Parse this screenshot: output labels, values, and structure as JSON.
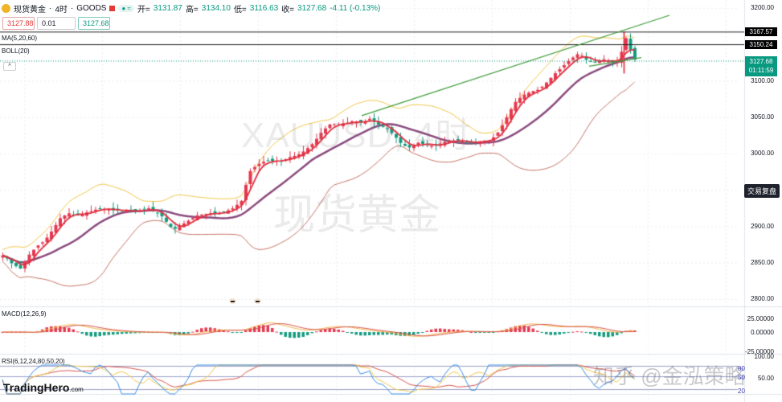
{
  "header": {
    "symbol": "现货黄金",
    "timeframe": "4时",
    "exchange": "GOODS",
    "open_label": "开=",
    "open": "3131.87",
    "high_label": "高=",
    "high": "3134.10",
    "low_label": "低=",
    "low": "3116.63",
    "close_label": "收=",
    "close": "3127.68",
    "change": "-4.11 (-0.13%)",
    "status_pill": "≈"
  },
  "trade_boxes": {
    "sell_price": "3127.88",
    "quantity": "0.01",
    "buy_price": "3127.68"
  },
  "indicators": {
    "ma": "MA(5,20,60)",
    "boll": "BOLL(20)",
    "macd": "MACD(12,26,9)",
    "rsi": "RSI(6,12,24,80,50,20)",
    "collapse_icon": "^"
  },
  "price_axis": {
    "labels": [
      "3200.00",
      "3100.00",
      "3050.00",
      "3000.00",
      "2900.00",
      "2850.00",
      "2800.00"
    ],
    "tag_high": "3167.57",
    "tag_mid": "3150.24",
    "tag_last": "3127.68",
    "tag_countdown": "01:11:59",
    "replay_button": "交易复盘"
  },
  "macd_axis": [
    "25.00000",
    "0.00000",
    "-25.00000"
  ],
  "rsi_axis": {
    "labels": [
      "100.00",
      "50.00"
    ],
    "levels": [
      "80",
      "50",
      "20"
    ]
  },
  "watermarks": {
    "symbol": "XAUUSD, 4时",
    "name": "现货黄金",
    "credit": "知乎 @金泓策略"
  },
  "logo": {
    "brand": "TradingHero",
    "suffix": ".com"
  },
  "colors": {
    "up": "#e53950",
    "down": "#139b7f",
    "ma5": "#e0303f",
    "ma20": "#8b4a7e",
    "boll_upper": "#f2c94c",
    "boll_lower": "#c9776a",
    "trend": "#3f9b3a",
    "rsi6": "#3a8ee6",
    "rsi12": "#f2c94c",
    "rsi24": "#d9564e"
  },
  "chart_data": {
    "type": "candlestick",
    "title": "现货黄金 · 4时 · GOODS",
    "ylim": [
      2800,
      3200
    ],
    "yticks": [
      2800,
      2850,
      2900,
      3000,
      3050,
      3100,
      3200
    ],
    "last": {
      "open": 3131.87,
      "high": 3134.1,
      "low": 3116.63,
      "close": 3127.68
    },
    "horizontal_lines": [
      3167.57,
      3150.24
    ],
    "trendline": {
      "from": [
        450,
        3052
      ],
      "to": [
        833,
        3190
      ]
    },
    "price_path": [
      [
        5,
        2860
      ],
      [
        15,
        2848
      ],
      [
        25,
        2842
      ],
      [
        35,
        2860
      ],
      [
        45,
        2872
      ],
      [
        55,
        2880
      ],
      [
        65,
        2895
      ],
      [
        75,
        2912
      ],
      [
        85,
        2918
      ],
      [
        95,
        2915
      ],
      [
        110,
        2920
      ],
      [
        125,
        2925
      ],
      [
        140,
        2922
      ],
      [
        155,
        2922
      ],
      [
        170,
        2920
      ],
      [
        185,
        2925
      ],
      [
        200,
        2915
      ],
      [
        215,
        2895
      ],
      [
        230,
        2905
      ],
      [
        245,
        2915
      ],
      [
        260,
        2918
      ],
      [
        275,
        2918
      ],
      [
        290,
        2925
      ],
      [
        300,
        2935
      ],
      [
        310,
        2975
      ],
      [
        320,
        2985
      ],
      [
        330,
        2990
      ],
      [
        340,
        2990
      ],
      [
        350,
        2990
      ],
      [
        360,
        2995
      ],
      [
        370,
        2998
      ],
      [
        380,
        3005
      ],
      [
        390,
        3015
      ],
      [
        400,
        3030
      ],
      [
        410,
        3040
      ],
      [
        420,
        3040
      ],
      [
        430,
        3042
      ],
      [
        440,
        3045
      ],
      [
        450,
        3042
      ],
      [
        460,
        3048
      ],
      [
        470,
        3040
      ],
      [
        480,
        3035
      ],
      [
        490,
        3025
      ],
      [
        500,
        3012
      ],
      [
        510,
        3008
      ],
      [
        520,
        3015
      ],
      [
        530,
        3012
      ],
      [
        540,
        3010
      ],
      [
        550,
        3015
      ],
      [
        560,
        3018
      ],
      [
        570,
        3018
      ],
      [
        580,
        3015
      ],
      [
        590,
        3015
      ],
      [
        600,
        3018
      ],
      [
        610,
        3018
      ],
      [
        620,
        3030
      ],
      [
        630,
        3050
      ],
      [
        640,
        3070
      ],
      [
        650,
        3080
      ],
      [
        660,
        3085
      ],
      [
        670,
        3088
      ],
      [
        680,
        3098
      ],
      [
        690,
        3110
      ],
      [
        700,
        3120
      ],
      [
        710,
        3130
      ],
      [
        720,
        3138
      ],
      [
        730,
        3128
      ],
      [
        740,
        3125
      ],
      [
        750,
        3130
      ],
      [
        760,
        3125
      ],
      [
        770,
        3128
      ],
      [
        778,
        3160
      ],
      [
        785,
        3140
      ],
      [
        790,
        3128
      ]
    ],
    "ma5_path": [],
    "macd_hist_note": "negative early, positive mid, negative at end"
  }
}
